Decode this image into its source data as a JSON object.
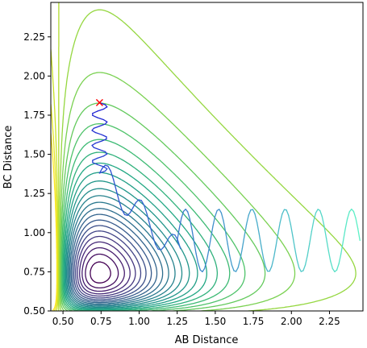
{
  "chart_data": {
    "type": "contour",
    "title": "",
    "xlabel": "AB Distance",
    "ylabel": "BC Distance",
    "xlim": [
      0.42,
      2.47
    ],
    "ylim": [
      0.5,
      2.47
    ],
    "x_ticks": [
      "0.50",
      "0.75",
      "1.00",
      "1.25",
      "1.50",
      "1.75",
      "2.00",
      "2.25"
    ],
    "y_ticks": [
      "0.50",
      "0.75",
      "1.00",
      "1.25",
      "1.50",
      "1.75",
      "2.00",
      "2.25"
    ],
    "grid": false,
    "colormap": "viridis",
    "contour_levels_drawn": 26,
    "start_marker": {
      "symbol": "x",
      "color": "#ff0000",
      "x": 0.74,
      "y": 1.83
    },
    "trajectory": {
      "start": [
        0.74,
        1.83
      ],
      "color_start": "#1f1fd4",
      "color_end": "#5df2c6",
      "description_points": [
        [
          0.74,
          1.83
        ],
        [
          0.8,
          1.67
        ],
        [
          0.72,
          1.6
        ],
        [
          0.78,
          1.53
        ],
        [
          0.72,
          1.45
        ],
        [
          0.9,
          1.3
        ],
        [
          1.1,
          1.08
        ],
        [
          1.2,
          0.83
        ],
        [
          1.35,
          0.76
        ],
        [
          1.6,
          1.1
        ],
        [
          1.85,
          0.78
        ],
        [
          2.05,
          1.1
        ],
        [
          2.3,
          0.78
        ]
      ]
    }
  }
}
